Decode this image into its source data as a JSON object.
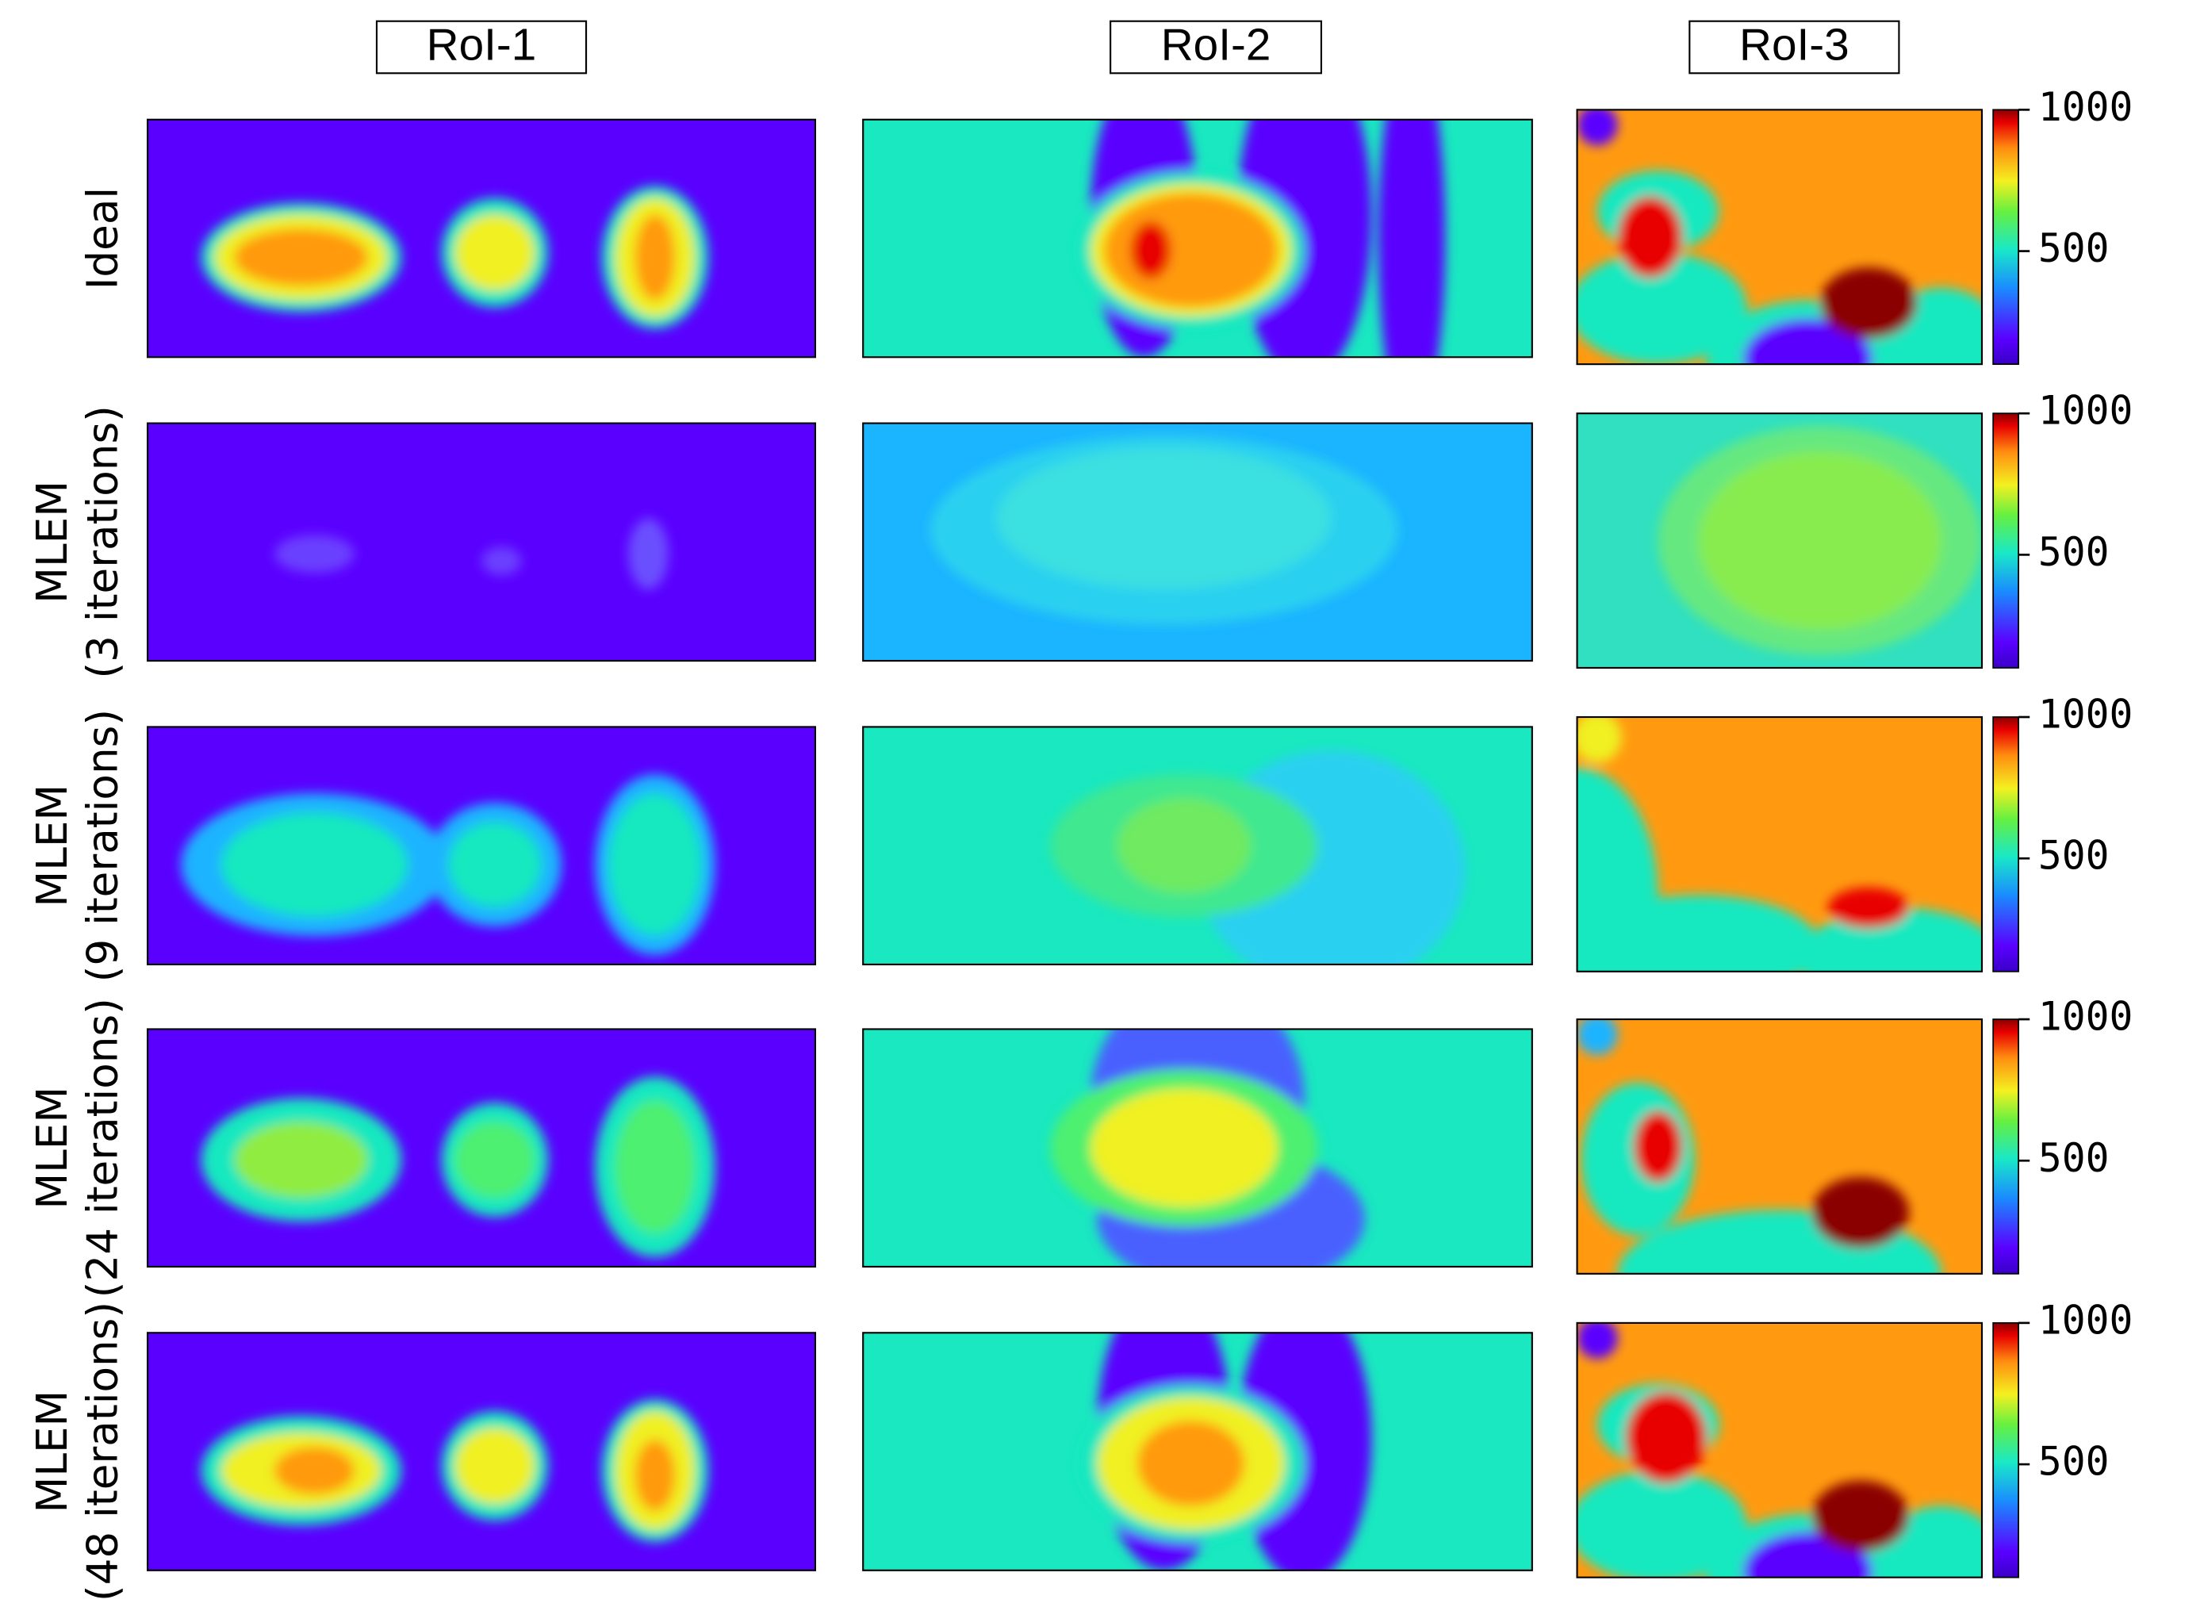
{
  "columns": [
    "RoI-1",
    "RoI-2",
    "RoI-3"
  ],
  "rows": [
    [
      "Ideal"
    ],
    [
      "MLEM",
      "(3 iterations)"
    ],
    [
      "MLEM",
      "(9 iterations)"
    ],
    [
      "MLEM",
      "(24 iterations)"
    ],
    [
      "MLEM",
      "(48 iterations)"
    ]
  ],
  "colorbar": {
    "lim": [
      100,
      1000
    ],
    "ticks": [
      500,
      1000
    ]
  }
}
